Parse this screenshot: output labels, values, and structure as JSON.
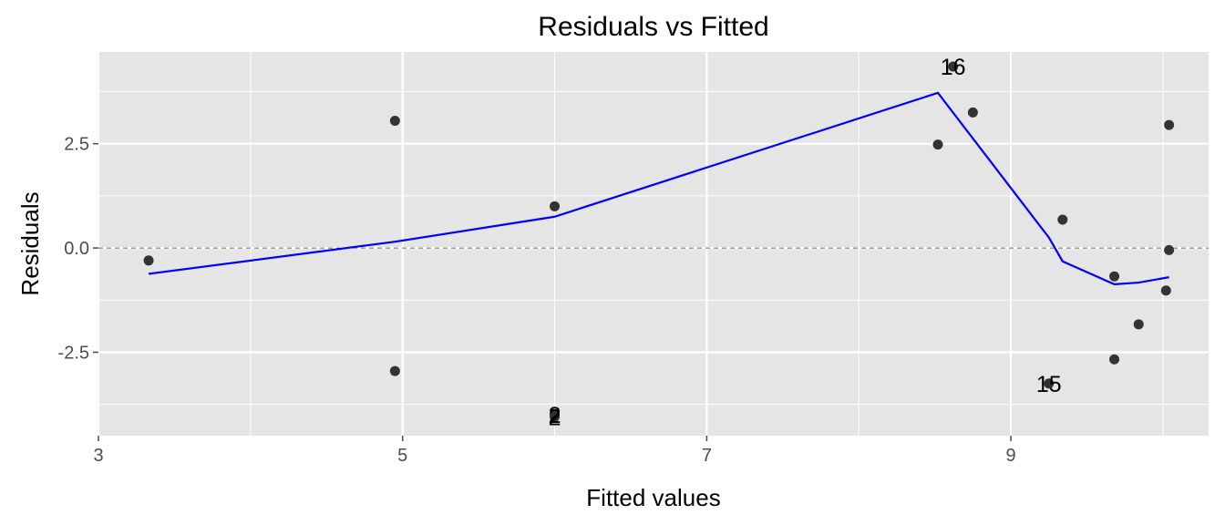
{
  "colors": {
    "panel": "#e5e5e5",
    "grid_major": "#ffffff",
    "point": "#333333",
    "smooth": "#0000ff",
    "zero_line": "#666666",
    "tick": "#4d4d4d"
  },
  "chart_data": {
    "type": "scatter",
    "title": "Residuals vs Fitted",
    "xlabel": "Fitted values",
    "ylabel": "Residuals",
    "xlim": [
      3,
      10.3
    ],
    "ylim": [
      -4.5,
      4.7
    ],
    "x_ticks": [
      3,
      5,
      7,
      9
    ],
    "x_tick_labels": [
      "3",
      "5",
      "7",
      "9"
    ],
    "x_minor": [
      4,
      6,
      8,
      10
    ],
    "y_ticks": [
      -2.5,
      0,
      2.5
    ],
    "y_tick_labels": [
      "-2.5",
      "0.0",
      "2.5"
    ],
    "y_minor": [
      -3.75,
      -1.25,
      1.25,
      3.75
    ],
    "zero_line": 0,
    "points": [
      {
        "x": 3.33,
        "y": -0.3
      },
      {
        "x": 4.95,
        "y": 3.05
      },
      {
        "x": 4.95,
        "y": -2.95
      },
      {
        "x": 6.0,
        "y": 1.0
      },
      {
        "x": 6.0,
        "y": -4.0
      },
      {
        "x": 6.0,
        "y": -4.05
      },
      {
        "x": 8.52,
        "y": 2.48
      },
      {
        "x": 8.62,
        "y": 4.35
      },
      {
        "x": 8.75,
        "y": 3.25
      },
      {
        "x": 9.25,
        "y": -3.25
      },
      {
        "x": 9.34,
        "y": 0.68
      },
      {
        "x": 9.68,
        "y": -0.68
      },
      {
        "x": 9.68,
        "y": -2.67
      },
      {
        "x": 9.84,
        "y": -1.83
      },
      {
        "x": 10.02,
        "y": -1.02
      },
      {
        "x": 10.04,
        "y": -0.05
      },
      {
        "x": 10.04,
        "y": 2.95
      }
    ],
    "labels": [
      {
        "text": "16",
        "x": 8.62,
        "y": 4.35
      },
      {
        "text": "15",
        "x": 9.25,
        "y": -3.25
      },
      {
        "text": "2",
        "x": 6.0,
        "y": -4.0
      },
      {
        "text": "2",
        "x": 6.0,
        "y": -4.05
      }
    ],
    "smooth_line": {
      "x": [
        3.33,
        4.95,
        6.0,
        8.52,
        9.25,
        9.34,
        9.68,
        9.84,
        10.04
      ],
      "y": [
        -0.62,
        0.15,
        0.75,
        3.72,
        0.25,
        -0.32,
        -0.87,
        -0.83,
        -0.7
      ]
    }
  }
}
